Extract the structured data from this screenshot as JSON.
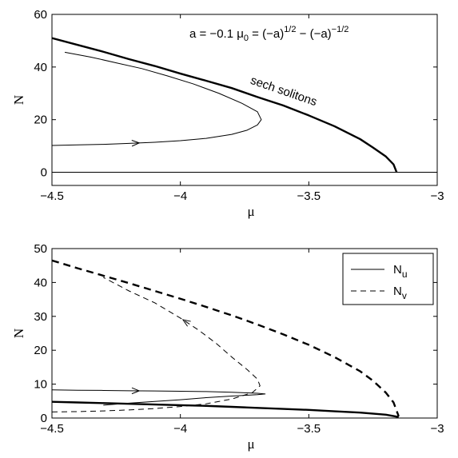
{
  "chart_data": [
    {
      "type": "line",
      "annotation": {
        "a_label": "a = −0.1",
        "mu0_label": "μ",
        "mu0_sub": "0",
        "mu0_eq": " = (−a)",
        "exp1": "1/2",
        "mu0_minus": " − (−a)",
        "exp2": "−1/2"
      },
      "curve_label": "sech solitons",
      "xlabel": "μ",
      "ylabel": "N",
      "xlim": [
        -4.5,
        -3
      ],
      "ylim": [
        -5,
        60
      ],
      "xticks": [
        -4.5,
        -4,
        -3.5,
        -3
      ],
      "xtick_labels": [
        "−4.5",
        "−4",
        "−3.5",
        "−3"
      ],
      "yticks": [
        0,
        20,
        40,
        60
      ],
      "ytick_labels": [
        "0",
        "20",
        "40",
        "60"
      ],
      "grid": false,
      "series": [
        {
          "style": "thick-solid",
          "x": [
            -4.5,
            -4.4,
            -4.3,
            -4.2,
            -4.1,
            -4.0,
            -3.9,
            -3.8,
            -3.7,
            -3.6,
            -3.5,
            -3.4,
            -3.3,
            -3.25,
            -3.2,
            -3.17,
            -3.158
          ],
          "y": [
            51,
            48.4,
            45.8,
            43,
            40.4,
            37.5,
            34.8,
            32,
            28.6,
            25.4,
            21.6,
            17.5,
            12.6,
            9.4,
            6,
            3,
            0
          ]
        },
        {
          "style": "thin-solid",
          "arrow_at": -4.16,
          "x": [
            -4.5,
            -4.4,
            -4.3,
            -4.2,
            -4.1,
            -4.0,
            -3.9,
            -3.8,
            -3.74,
            -3.7,
            -3.685,
            -3.7,
            -3.76,
            -3.85,
            -3.95,
            -4.05,
            -4.15,
            -4.25,
            -4.35,
            -4.45
          ],
          "y": [
            10.2,
            10.4,
            10.6,
            11,
            11.4,
            12,
            12.9,
            14.4,
            16,
            18,
            20,
            23,
            26.2,
            30,
            33.6,
            36.6,
            39.4,
            41.6,
            43.8,
            45.6
          ]
        },
        {
          "style": "thin-solid",
          "x": [
            -4.5,
            -3
          ],
          "y": [
            0,
            0
          ]
        }
      ]
    },
    {
      "type": "line",
      "xlabel": "μ",
      "ylabel": "N",
      "xlim": [
        -4.5,
        -3
      ],
      "ylim": [
        0,
        50
      ],
      "xticks": [
        -4.5,
        -4,
        -3.5,
        -3
      ],
      "xtick_labels": [
        "−4.5",
        "−4",
        "−3.5",
        "−3"
      ],
      "yticks": [
        0,
        10,
        20,
        30,
        40,
        50
      ],
      "ytick_labels": [
        "0",
        "10",
        "20",
        "30",
        "40",
        "50"
      ],
      "grid": false,
      "legend": {
        "position": "top-right",
        "entries": [
          {
            "main": "N",
            "sub": "u",
            "style": "solid"
          },
          {
            "main": "N",
            "sub": "v",
            "style": "dashed"
          }
        ]
      },
      "series": [
        {
          "style": "thick-dashed",
          "x": [
            -4.5,
            -4.4,
            -4.3,
            -4.2,
            -4.1,
            -4.0,
            -3.9,
            -3.8,
            -3.7,
            -3.6,
            -3.5,
            -3.4,
            -3.3,
            -3.25,
            -3.2,
            -3.17,
            -3.15
          ],
          "y": [
            46.5,
            44.2,
            42,
            39.8,
            37.5,
            35.2,
            32.8,
            30.3,
            27.6,
            24.7,
            21.6,
            18,
            13.8,
            11,
            7.5,
            4.6,
            0.5
          ]
        },
        {
          "style": "thin-dashed",
          "arrow_at": 29,
          "x": [
            -4.5,
            -4.4,
            -4.3,
            -4.2,
            -4.1,
            -4.0,
            -3.9,
            -3.8,
            -3.72,
            -3.69,
            -3.7,
            -3.74,
            -3.8,
            -3.86,
            -3.93,
            -4.0,
            -4.1,
            -4.2,
            -4.3
          ],
          "y": [
            1.8,
            1.9,
            2.1,
            2.4,
            2.8,
            3.4,
            4.2,
            5.6,
            7.5,
            9.5,
            11.5,
            14.3,
            18,
            22,
            26,
            29.5,
            34,
            37.5,
            41.5
          ]
        },
        {
          "style": "thin-solid",
          "arrow_at": -4.16,
          "x": [
            -4.5,
            -4.4,
            -4.3,
            -4.2,
            -4.1,
            -4.0,
            -3.9,
            -3.8,
            -3.7,
            -3.67,
            -3.7,
            -3.8,
            -3.9,
            -4.0,
            -4.1,
            -4.2,
            -4.3
          ],
          "y": [
            8.3,
            8.2,
            8.15,
            8.05,
            8.0,
            7.9,
            7.8,
            7.6,
            7.3,
            7.1,
            6.9,
            6.5,
            6.0,
            5.4,
            4.9,
            4.4,
            3.8
          ]
        },
        {
          "style": "thick-solid",
          "x": [
            -4.5,
            -4.4,
            -4.3,
            -4.2,
            -4.1,
            -4.0,
            -3.9,
            -3.8,
            -3.7,
            -3.6,
            -3.5,
            -3.4,
            -3.3,
            -3.2,
            -3.15
          ],
          "y": [
            4.8,
            4.6,
            4.4,
            4.2,
            4.0,
            3.8,
            3.6,
            3.3,
            3.0,
            2.7,
            2.4,
            2.0,
            1.6,
            1.0,
            0.3
          ]
        }
      ]
    }
  ]
}
